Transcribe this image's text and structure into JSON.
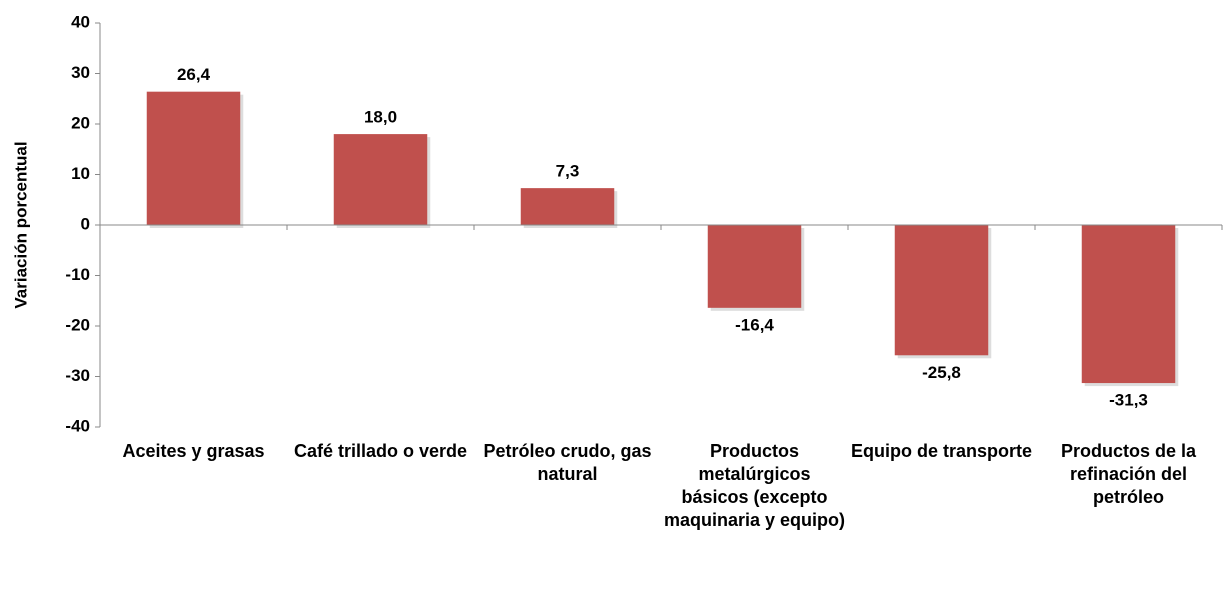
{
  "chart_data": {
    "type": "bar",
    "ylabel": "Variación porcentual",
    "categories": [
      "Aceites y grasas",
      "Café trillado o verde",
      "Petróleo crudo, gas natural",
      "Productos metalúrgicos básicos (excepto maquinaria y equipo)",
      "Equipo de transporte",
      "Productos de la refinación del petróleo"
    ],
    "values": [
      26.4,
      18.0,
      7.3,
      -16.4,
      -25.8,
      -31.3
    ],
    "value_labels": [
      "26,4",
      "18,0",
      "7,3",
      "-16,4",
      "-25,8",
      "-31,3"
    ],
    "color": "#c0504d",
    "ylim": [
      -40,
      40
    ],
    "yticks": [
      -40,
      -30,
      -20,
      -10,
      0,
      10,
      20,
      30,
      40
    ],
    "grid": false
  }
}
